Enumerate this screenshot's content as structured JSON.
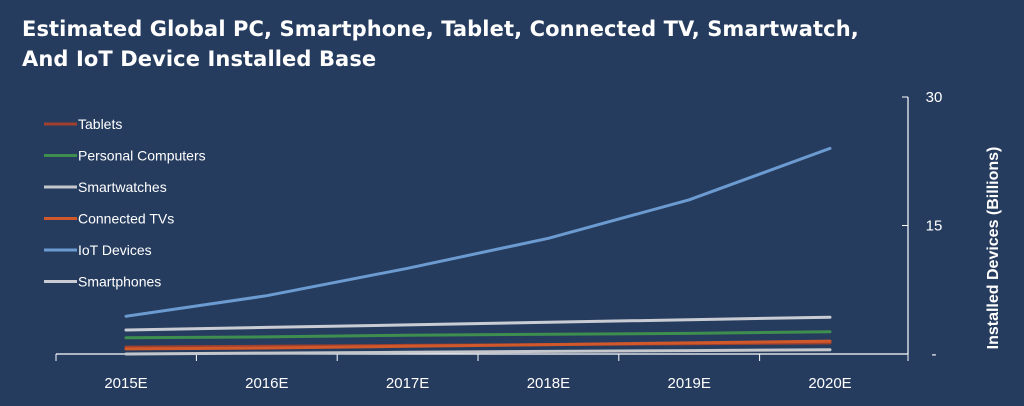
{
  "title_lines": [
    "Estimated Global PC, Smartphone, Tablet, Connected TV, Smartwatch,",
    "And IoT Device Installed Base"
  ],
  "colors": {
    "background": "#263c5f",
    "axis": "#ffffff"
  },
  "chart_data": {
    "type": "line",
    "title": "Estimated Global PC, Smartphone, Tablet, Connected TV, Smartwatch, And IoT Device Installed Base",
    "categories": [
      "2015E",
      "2016E",
      "2017E",
      "2018E",
      "2019E",
      "2020E"
    ],
    "ylabel": "Installed Devices (Billions)",
    "ylim": [
      0,
      30
    ],
    "yticks": [
      {
        "value": 30,
        "label": "30"
      },
      {
        "value": 15,
        "label": "15"
      },
      {
        "value": 0,
        "label": "-"
      }
    ],
    "y_axis_side": "right",
    "grid": false,
    "legend_placement": "top-left",
    "series": [
      {
        "name": "Tablets",
        "color": "#a0412f",
        "values": [
          0.8,
          0.9,
          1.0,
          1.1,
          1.2,
          1.3
        ]
      },
      {
        "name": "Personal Computers",
        "color": "#3e8f4f",
        "values": [
          1.9,
          2.0,
          2.2,
          2.3,
          2.4,
          2.6
        ]
      },
      {
        "name": "Smartwatches",
        "color": "#c4c7cc",
        "values": [
          0.0,
          0.1,
          0.2,
          0.3,
          0.4,
          0.5
        ]
      },
      {
        "name": "Connected TVs",
        "color": "#d1582a",
        "values": [
          0.6,
          0.7,
          0.9,
          1.1,
          1.3,
          1.5
        ]
      },
      {
        "name": "IoT Devices",
        "color": "#6b9bd1",
        "values": [
          4.4,
          6.8,
          10.0,
          13.5,
          18.0,
          24.0
        ]
      },
      {
        "name": "Smartphones",
        "color": "#c9ccd3",
        "values": [
          2.8,
          3.1,
          3.4,
          3.7,
          4.0,
          4.3
        ]
      }
    ]
  }
}
